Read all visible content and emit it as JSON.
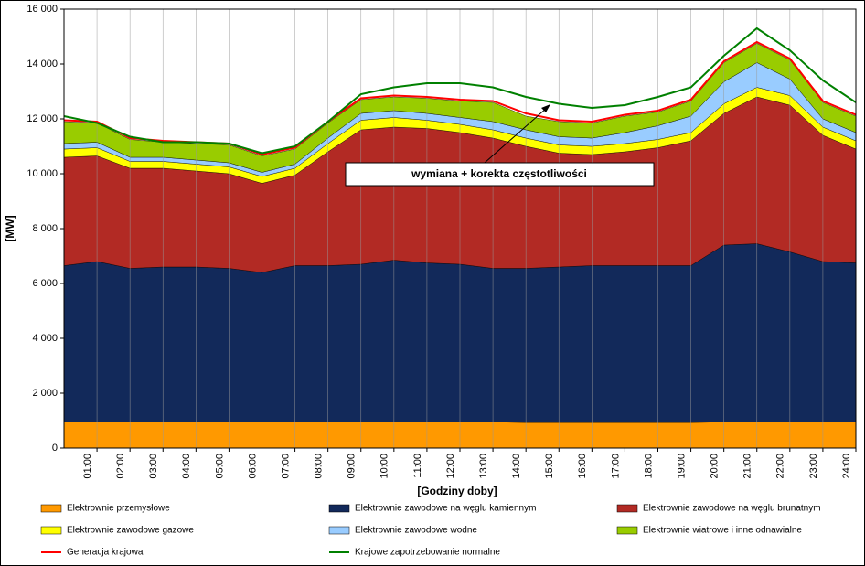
{
  "chart_data": {
    "type": "stacked_area",
    "y_label": "[MW]",
    "x_label": "[Godziny doby]",
    "annotation": "wymiana + korekta częstotliwości",
    "xlim": [
      0,
      24
    ],
    "ylim": [
      0,
      16000
    ],
    "xticks": [
      {
        "value": 1,
        "label": "01:00"
      },
      {
        "value": 2,
        "label": "02:00"
      },
      {
        "value": 3,
        "label": "03:00"
      },
      {
        "value": 4,
        "label": "04:00"
      },
      {
        "value": 5,
        "label": "05:00"
      },
      {
        "value": 6,
        "label": "06:00"
      },
      {
        "value": 7,
        "label": "07:00"
      },
      {
        "value": 8,
        "label": "08:00"
      },
      {
        "value": 9,
        "label": "09:00"
      },
      {
        "value": 10,
        "label": "10:00"
      },
      {
        "value": 11,
        "label": "11:00"
      },
      {
        "value": 12,
        "label": "12:00"
      },
      {
        "value": 13,
        "label": "13:00"
      },
      {
        "value": 14,
        "label": "14:00"
      },
      {
        "value": 15,
        "label": "15:00"
      },
      {
        "value": 16,
        "label": "16:00"
      },
      {
        "value": 17,
        "label": "17:00"
      },
      {
        "value": 18,
        "label": "18:00"
      },
      {
        "value": 19,
        "label": "19:00"
      },
      {
        "value": 20,
        "label": "20:00"
      },
      {
        "value": 21,
        "label": "21:00"
      },
      {
        "value": 22,
        "label": "22:00"
      },
      {
        "value": 23,
        "label": "23:00"
      },
      {
        "value": 24,
        "label": "24:00"
      }
    ],
    "yticks": [
      0,
      {
        "value": 2000,
        "label": "2 000"
      },
      {
        "value": 4000,
        "label": "4 000"
      },
      {
        "value": 6000,
        "label": "6 000"
      },
      {
        "value": 8000,
        "label": "8 000"
      },
      {
        "value": 10000,
        "label": "10 000"
      },
      {
        "value": 12000,
        "label": "12 000"
      },
      {
        "value": 14000,
        "label": "14 000"
      },
      {
        "value": 16000,
        "label": "16 000"
      }
    ],
    "grid": true,
    "x": [
      0,
      1,
      2,
      3,
      4,
      5,
      6,
      7,
      8,
      9,
      10,
      11,
      12,
      13,
      14,
      15,
      16,
      17,
      18,
      19,
      20,
      21,
      22,
      23,
      24
    ],
    "series": [
      {
        "name": "Elektrownie przemysłowe",
        "color": "#ff9900",
        "type": "area",
        "values": [
          950,
          950,
          950,
          950,
          950,
          950,
          950,
          950,
          950,
          950,
          950,
          950,
          950,
          950,
          930,
          930,
          930,
          930,
          930,
          930,
          950,
          950,
          950,
          950,
          950
        ]
      },
      {
        "name": "Elektrownie zawodowe na węglu kamiennym",
        "color": "#12295a",
        "type": "area",
        "values": [
          5700,
          5850,
          5600,
          5650,
          5650,
          5600,
          5450,
          5700,
          5700,
          5750,
          5900,
          5800,
          5750,
          5600,
          5620,
          5670,
          5720,
          5720,
          5720,
          5720,
          6450,
          6500,
          6200,
          5850,
          5800
        ]
      },
      {
        "name": "Elektrownie zawodowe na węglu brunatnym",
        "color": "#b22a24",
        "type": "area",
        "values": [
          3950,
          3850,
          3650,
          3600,
          3500,
          3450,
          3250,
          3300,
          4150,
          4900,
          4850,
          4900,
          4800,
          4750,
          4450,
          4150,
          4050,
          4150,
          4300,
          4550,
          4800,
          5350,
          5350,
          4600,
          4150
        ]
      },
      {
        "name": "Elektrownie zawodowe gazowe",
        "color": "#ffff00",
        "type": "area",
        "values": [
          300,
          300,
          250,
          250,
          250,
          250,
          250,
          250,
          300,
          350,
          350,
          300,
          300,
          300,
          300,
          300,
          300,
          300,
          300,
          300,
          350,
          350,
          350,
          300,
          300
        ]
      },
      {
        "name": "Elektrownie zawodowe wodne",
        "color": "#99ccff",
        "type": "area",
        "values": [
          200,
          200,
          150,
          150,
          150,
          150,
          150,
          150,
          200,
          250,
          250,
          250,
          250,
          300,
          300,
          300,
          300,
          400,
          500,
          600,
          800,
          900,
          600,
          300,
          300
        ]
      },
      {
        "name": "Elektrownie wiatrowe i inne odnawialne",
        "color": "#99cc00",
        "type": "area",
        "values": [
          800,
          700,
          650,
          550,
          600,
          650,
          600,
          550,
          550,
          500,
          500,
          550,
          600,
          700,
          500,
          550,
          550,
          600,
          500,
          550,
          700,
          700,
          700,
          600,
          600
        ]
      },
      {
        "name": "Generacja krajowa",
        "color": "#ff0000",
        "type": "line",
        "values": [
          11950,
          11900,
          11300,
          11200,
          11150,
          11100,
          10700,
          10950,
          11900,
          12750,
          12850,
          12800,
          12700,
          12650,
          12200,
          11950,
          11900,
          12150,
          12300,
          12700,
          14100,
          14800,
          14200,
          12650,
          12150
        ]
      },
      {
        "name": "Krajowe zapotrzebowanie normalne",
        "color": "#008000",
        "type": "line",
        "values": [
          12100,
          11850,
          11350,
          11150,
          11150,
          11100,
          10750,
          11000,
          11900,
          12900,
          13150,
          13300,
          13300,
          13150,
          12800,
          12550,
          12400,
          12500,
          12800,
          13150,
          14300,
          15300,
          14500,
          13400,
          12600
        ]
      }
    ]
  }
}
